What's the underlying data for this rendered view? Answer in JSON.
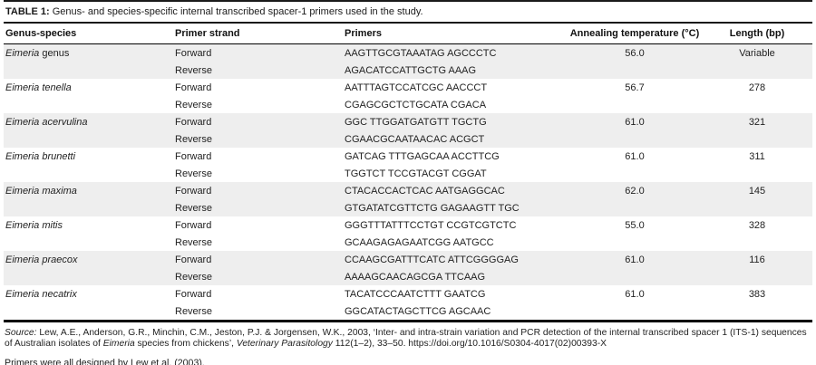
{
  "caption": {
    "label": "TABLE 1:",
    "text": " Genus- and species-specific internal transcribed spacer-1 primers used in the study."
  },
  "table": {
    "columns": [
      "Genus-species",
      "Primer strand",
      "Primers",
      "Annealing temperature (°C)",
      "Length (bp)"
    ],
    "strand_forward": "Forward",
    "strand_reverse": "Reverse",
    "rows": [
      {
        "species_italic": "Eimeria",
        "species_plain": " genus",
        "shaded": true,
        "forward": "AAGTTGCGTAAATAG AGCCCTC",
        "reverse": "AGACATCCATTGCTG AAAG",
        "temperature": "56.0",
        "length": "Variable"
      },
      {
        "species_italic": "Eimeria tenella",
        "species_plain": "",
        "shaded": false,
        "forward": "AATTTAGTCCATCGC AACCCT",
        "reverse": "CGAGCGCTCTGCATA CGACA",
        "temperature": "56.7",
        "length": "278"
      },
      {
        "species_italic": "Eimeria acervulina",
        "species_plain": "",
        "shaded": true,
        "forward": "GGC TTGGATGATGTT TGCTG",
        "reverse": "CGAACGCAATAACAC ACGCT",
        "temperature": "61.0",
        "length": "321"
      },
      {
        "species_italic": "Eimeria brunetti",
        "species_plain": "",
        "shaded": false,
        "forward": "GATCAG TTTGAGCAA ACCTTCG",
        "reverse": "TGGTCT TCCGTACGT CGGAT",
        "temperature": "61.0",
        "length": "311"
      },
      {
        "species_italic": "Eimeria maxima",
        "species_plain": "",
        "shaded": true,
        "forward": "CTACACCACTCAC AATGAGGCAC",
        "reverse": "GTGATATCGTTCTG GAGAAGTT TGC",
        "temperature": "62.0",
        "length": "145"
      },
      {
        "species_italic": "Eimeria mitis",
        "species_plain": "",
        "shaded": false,
        "forward": "GGGTTTATTTCCTGT CCGTCGTCTC",
        "reverse": "GCAAGAGAGAATCGG AATGCC",
        "temperature": "55.0",
        "length": "328"
      },
      {
        "species_italic": "Eimeria praecox",
        "species_plain": "",
        "shaded": true,
        "forward": "CCAAGCGATTTCATC ATTCGGGGAG",
        "reverse": "AAAAGCAACAGCGA TTCAAG",
        "temperature": "61.0",
        "length": "116"
      },
      {
        "species_italic": "Eimeria necatrix",
        "species_plain": "",
        "shaded": false,
        "forward": "TACATCCCAATCTTT GAATCG",
        "reverse": "GGCATACTAGCTTCG AGCAAC",
        "temperature": "61.0",
        "length": "383"
      }
    ]
  },
  "footer": {
    "source_segments": [
      {
        "text": "Source:",
        "italic": true
      },
      {
        "text": " Lew, A.E., Anderson, G.R., Minchin, C.M., Jeston, P.J. & Jorgensen, W.K., 2003, ‘Inter- and intra-strain variation and PCR detection of the internal transcribed spacer 1 (ITS-1) sequences of Australian isolates of ",
        "italic": false
      },
      {
        "text": "Eimeria",
        "italic": true
      },
      {
        "text": " species from chickens’, ",
        "italic": false
      },
      {
        "text": "Veterinary Parasitology",
        "italic": true
      },
      {
        "text": " 112(1–2), 33–50. https://doi.org/10.1016/S0304-4017(02)00393-X",
        "italic": false
      }
    ],
    "note": "Primers were all designed by Lew et al. (2003)."
  },
  "colors": {
    "row_stripe": "#eeeeee",
    "rule": "#000000",
    "text": "#1f1f1f"
  }
}
